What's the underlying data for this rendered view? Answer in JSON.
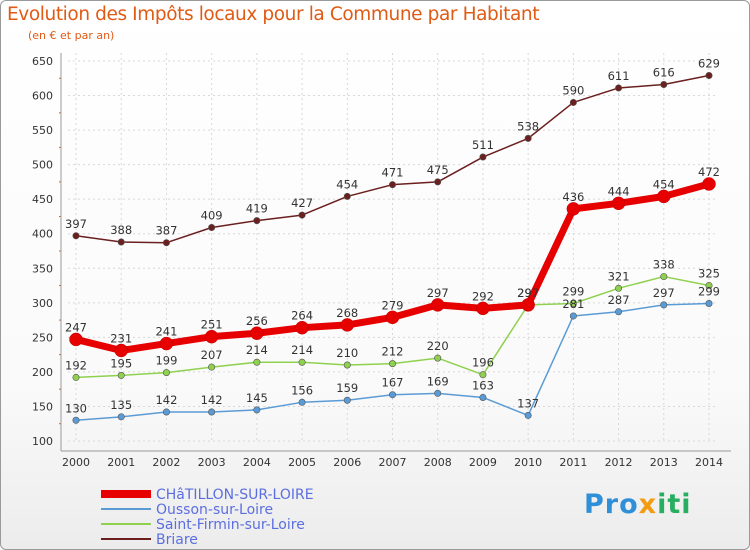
{
  "title": "Evolution des Impôts locaux pour la Commune par Habitant",
  "subtitle": "(en € et par an)",
  "logo": {
    "part1": "Pro",
    "part2": "x",
    "part3": "iti"
  },
  "chart_data": {
    "type": "line",
    "categories": [
      "2000",
      "2001",
      "2002",
      "2003",
      "2004",
      "2005",
      "2006",
      "2007",
      "2008",
      "2009",
      "2010",
      "2011",
      "2012",
      "2013",
      "2014"
    ],
    "ylim": [
      100,
      650
    ],
    "yticks": [
      100,
      150,
      200,
      250,
      300,
      350,
      400,
      450,
      500,
      550,
      600,
      650
    ],
    "grid": true,
    "legend_position": "bottom-left",
    "series": [
      {
        "name": "Briare",
        "color": "#6b1f1f",
        "values": [
          397,
          388,
          387,
          409,
          419,
          427,
          454,
          471,
          475,
          511,
          538,
          590,
          611,
          616,
          629
        ]
      },
      {
        "name": "Saint-Firmin-sur-Loire",
        "color": "#8fd14f",
        "values": [
          192,
          195,
          199,
          207,
          214,
          214,
          210,
          212,
          220,
          196,
          297,
          299,
          321,
          338,
          325
        ]
      },
      {
        "name": "Ousson-sur-Loire",
        "color": "#5b9bd5",
        "values": [
          130,
          135,
          142,
          142,
          145,
          156,
          159,
          167,
          169,
          163,
          137,
          281,
          287,
          297,
          299
        ]
      },
      {
        "name": "CHâTILLON-SUR-LOIRE",
        "color": "#e60000",
        "values": [
          247,
          231,
          241,
          251,
          256,
          264,
          268,
          279,
          297,
          292,
          297,
          436,
          444,
          454,
          472
        ]
      }
    ],
    "legend_order": [
      "CHâTILLON-SUR-LOIRE",
      "Ousson-sur-Loire",
      "Saint-Firmin-sur-Loire",
      "Briare"
    ]
  }
}
